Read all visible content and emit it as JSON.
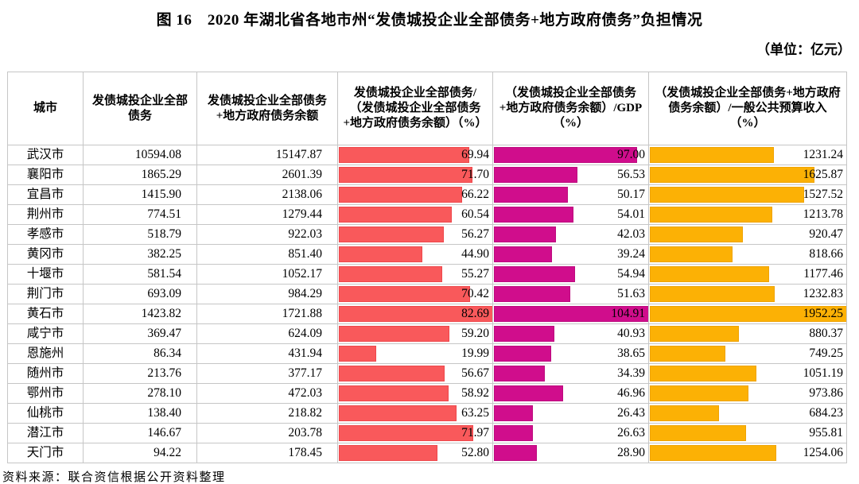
{
  "title": "图 16　2020 年湖北省各地市州“发债城投企业全部债务+地方政府债务”负担情况",
  "unit_note": "（单位：亿元）",
  "source_note": "资料来源：联合资信根据公开资料整理",
  "colors": {
    "bar_red": "#f9595b",
    "bar_magenta": "#d00d8c",
    "bar_orange": "#fcb105",
    "grid": "#c6c6c6"
  },
  "table": {
    "headers": [
      "城市",
      "发债城投企业全部债务",
      "发债城投企业全部债务+地方政府债务余额",
      "发债城投企业全部债务/（发债城投企业全部债务+地方政府债务余额）（%）",
      "（发债城投企业全部债务+地方政府债务余额）/GDP（%）",
      "（发债城投企业全部债务+地方政府债务余额）/一般公共预算收入（%）"
    ],
    "rows": [
      {
        "city": "武汉市",
        "debt": "10594.08",
        "total": "15147.87",
        "ratio": "69.94",
        "gdp": "97.00",
        "budget": "1231.24"
      },
      {
        "city": "襄阳市",
        "debt": "1865.29",
        "total": "2601.39",
        "ratio": "71.70",
        "gdp": "56.53",
        "budget": "1625.87"
      },
      {
        "city": "宜昌市",
        "debt": "1415.90",
        "total": "2138.06",
        "ratio": "66.22",
        "gdp": "50.17",
        "budget": "1527.52"
      },
      {
        "city": "荆州市",
        "debt": "774.51",
        "total": "1279.44",
        "ratio": "60.54",
        "gdp": "54.01",
        "budget": "1213.78"
      },
      {
        "city": "孝感市",
        "debt": "518.79",
        "total": "922.03",
        "ratio": "56.27",
        "gdp": "42.03",
        "budget": "920.47"
      },
      {
        "city": "黄冈市",
        "debt": "382.25",
        "total": "851.40",
        "ratio": "44.90",
        "gdp": "39.24",
        "budget": "818.66"
      },
      {
        "city": "十堰市",
        "debt": "581.54",
        "total": "1052.17",
        "ratio": "55.27",
        "gdp": "54.94",
        "budget": "1177.46"
      },
      {
        "city": "荆门市",
        "debt": "693.09",
        "total": "984.29",
        "ratio": "70.42",
        "gdp": "51.63",
        "budget": "1232.83"
      },
      {
        "city": "黄石市",
        "debt": "1423.82",
        "total": "1721.88",
        "ratio": "82.69",
        "gdp": "104.91",
        "budget": "1952.25"
      },
      {
        "city": "咸宁市",
        "debt": "369.47",
        "total": "624.09",
        "ratio": "59.20",
        "gdp": "40.93",
        "budget": "880.37"
      },
      {
        "city": "恩施州",
        "debt": "86.34",
        "total": "431.94",
        "ratio": "19.99",
        "gdp": "38.65",
        "budget": "749.25"
      },
      {
        "city": "随州市",
        "debt": "213.76",
        "total": "377.17",
        "ratio": "56.67",
        "gdp": "34.39",
        "budget": "1051.19"
      },
      {
        "city": "鄂州市",
        "debt": "278.10",
        "total": "472.03",
        "ratio": "58.92",
        "gdp": "46.96",
        "budget": "973.86"
      },
      {
        "city": "仙桃市",
        "debt": "138.40",
        "total": "218.82",
        "ratio": "63.25",
        "gdp": "26.43",
        "budget": "684.23"
      },
      {
        "city": "潜江市",
        "debt": "146.67",
        "total": "203.78",
        "ratio": "71.97",
        "gdp": "26.63",
        "budget": "955.81"
      },
      {
        "city": "天门市",
        "debt": "94.22",
        "total": "178.45",
        "ratio": "52.80",
        "gdp": "28.90",
        "budget": "1254.06"
      }
    ]
  },
  "chart_data": {
    "type": "table",
    "title": "图 16　2020 年湖北省各地市州“发债城投企业全部债务+地方政府债务”负担情况",
    "unit": "亿元",
    "categories": [
      "武汉市",
      "襄阳市",
      "宜昌市",
      "荆州市",
      "孝感市",
      "黄冈市",
      "十堰市",
      "荆门市",
      "黄石市",
      "咸宁市",
      "恩施州",
      "随州市",
      "鄂州市",
      "仙桃市",
      "潜江市",
      "天门市"
    ],
    "series": [
      {
        "name": "发债城投企业全部债务",
        "values": [
          10594.08,
          1865.29,
          1415.9,
          774.51,
          518.79,
          382.25,
          581.54,
          693.09,
          1423.82,
          369.47,
          86.34,
          213.76,
          278.1,
          138.4,
          146.67,
          94.22
        ],
        "display": "number"
      },
      {
        "name": "发债城投企业全部债务+地方政府债务余额",
        "values": [
          15147.87,
          2601.39,
          2138.06,
          1279.44,
          922.03,
          851.4,
          1052.17,
          984.29,
          1721.88,
          624.09,
          431.94,
          377.17,
          472.03,
          218.82,
          203.78,
          178.45
        ],
        "display": "number"
      },
      {
        "name": "发债城投企业全部债务/（发债城投企业全部债务+地方政府债务余额）（%）",
        "values": [
          69.94,
          71.7,
          66.22,
          60.54,
          56.27,
          44.9,
          55.27,
          70.42,
          82.69,
          59.2,
          19.99,
          56.67,
          58.92,
          63.25,
          71.97,
          52.8
        ],
        "display": "data-bar",
        "bar_color": "#f9595b",
        "bar_scale_max": 82.69
      },
      {
        "name": "（发债城投企业全部债务+地方政府债务余额）/GDP（%）",
        "values": [
          97.0,
          56.53,
          50.17,
          54.01,
          42.03,
          39.24,
          54.94,
          51.63,
          104.91,
          40.93,
          38.65,
          34.39,
          46.96,
          26.43,
          26.63,
          28.9
        ],
        "display": "data-bar",
        "bar_color": "#d00d8c",
        "bar_scale_max": 104.91
      },
      {
        "name": "（发债城投企业全部债务+地方政府债务余额）/一般公共预算收入（%）",
        "values": [
          1231.24,
          1625.87,
          1527.52,
          1213.78,
          920.47,
          818.66,
          1177.46,
          1232.83,
          1952.25,
          880.37,
          749.25,
          1051.19,
          973.86,
          684.23,
          955.81,
          1254.06
        ],
        "display": "data-bar",
        "bar_color": "#fcb105",
        "bar_scale_max": 1952.25
      }
    ],
    "legend_position": "none",
    "grid": true
  }
}
